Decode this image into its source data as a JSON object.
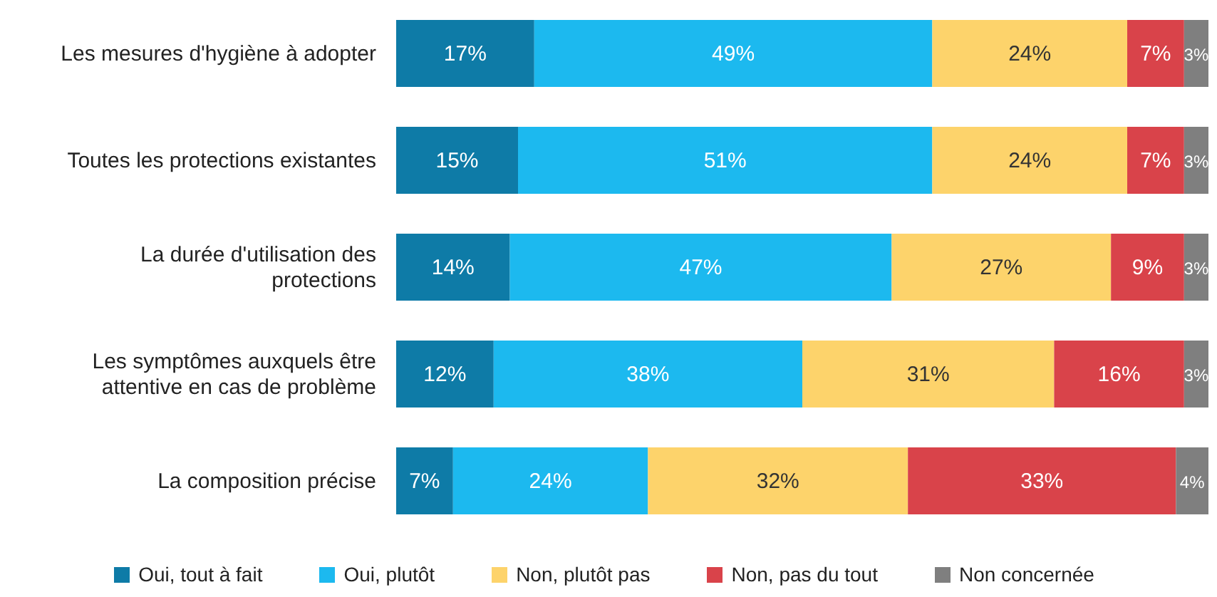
{
  "chart_data": {
    "type": "bar",
    "orientation": "horizontal",
    "stacked": true,
    "legend": "bottom",
    "grid": false,
    "categories": [
      "Les mesures d'hygiène à adopter",
      "Toutes les protections existantes",
      "La durée d'utilisation des protections",
      "Les symptômes auxquels être attentive en cas de problème",
      "La composition précise"
    ],
    "series": [
      {
        "name": "Oui, tout à fait",
        "color": "#0e7ba7",
        "values": [
          17,
          15,
          14,
          12,
          7
        ],
        "value_labels": [
          "17%",
          "15%",
          "14%",
          "12%",
          "7%"
        ]
      },
      {
        "name": "Oui, plutôt",
        "color": "#1cb9ef",
        "values": [
          49,
          51,
          47,
          38,
          24
        ],
        "value_labels": [
          "49%",
          "51%",
          "47%",
          "38%",
          "24%"
        ]
      },
      {
        "name": "Non, plutôt pas",
        "color": "#fdd36b",
        "values": [
          24,
          24,
          27,
          31,
          32
        ],
        "value_labels": [
          "24%",
          "24%",
          "27%",
          "31%",
          "32%"
        ]
      },
      {
        "name": "Non, pas du tout",
        "color": "#d9434a",
        "values": [
          7,
          7,
          9,
          16,
          33
        ],
        "value_labels": [
          "7%",
          "7%",
          "9%",
          "16%",
          "33%"
        ]
      },
      {
        "name": "Non concernée",
        "color": "#7f7f7f",
        "values": [
          3,
          3,
          3,
          3,
          4
        ],
        "value_labels": [
          "3%",
          "3%",
          "3%",
          "3%",
          "4%"
        ]
      }
    ]
  }
}
